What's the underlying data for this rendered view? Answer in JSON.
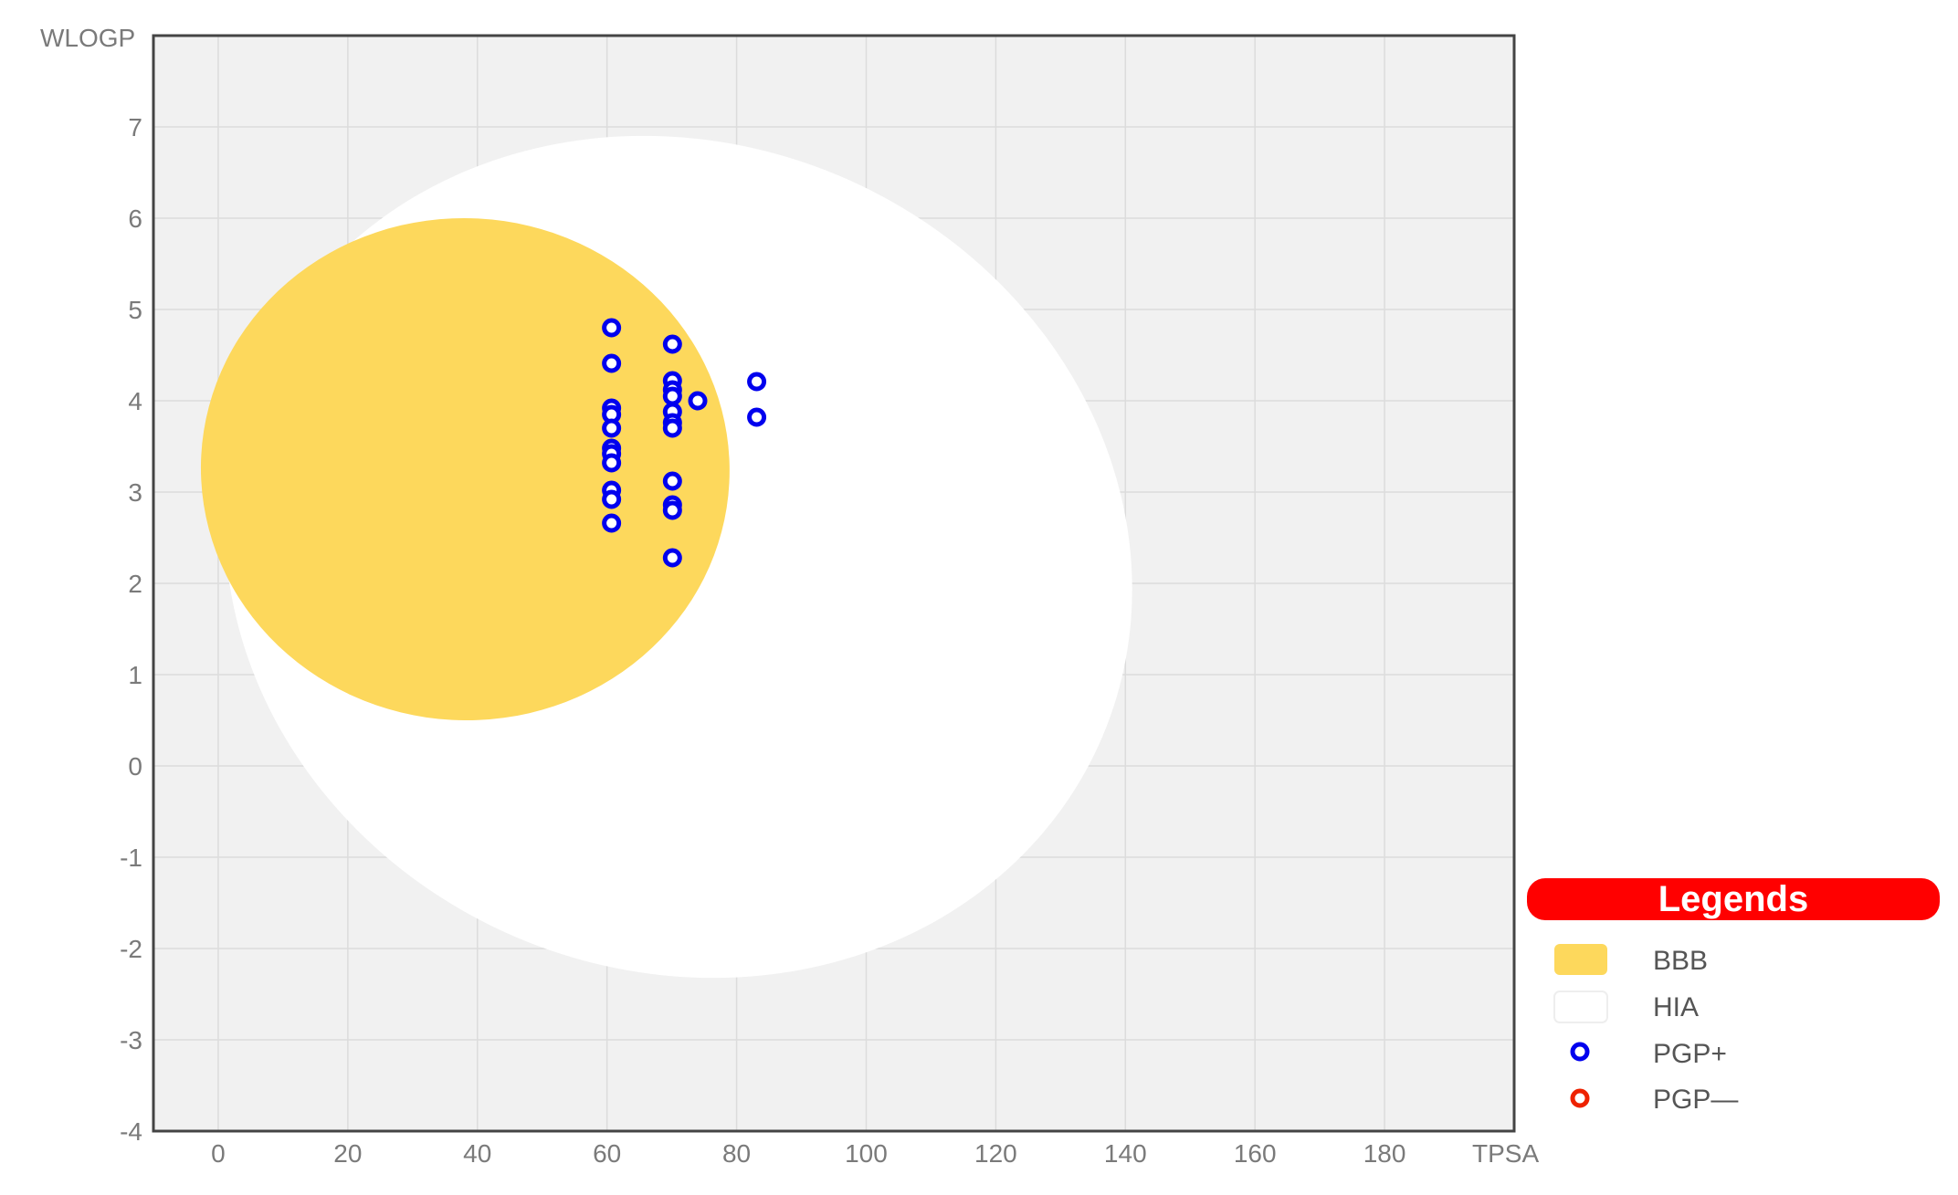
{
  "chart_data": {
    "type": "scatter",
    "xlabel": "TPSA",
    "ylabel": "WLOGP",
    "xlim": [
      -10,
      200
    ],
    "ylim": [
      -4,
      8
    ],
    "xticks": [
      0,
      20,
      40,
      60,
      80,
      100,
      120,
      140,
      160,
      180
    ],
    "yticks": [
      -4,
      -3,
      -2,
      -1,
      0,
      1,
      2,
      3,
      4,
      5,
      6,
      7
    ],
    "grid": true,
    "background_color": "#f1f1f1",
    "regions": [
      {
        "name": "HIA",
        "shape": "ellipse",
        "color": "#ffffff",
        "center": [
          71.05,
          2.29
        ],
        "radii": [
          71.05,
          4.53
        ],
        "rotation_deg": 23
      },
      {
        "name": "BBB",
        "shape": "ellipse",
        "color": "#fdd85c",
        "center": [
          38.12,
          3.25
        ],
        "radii": [
          40.8,
          2.75
        ],
        "rotation_deg": 3
      }
    ],
    "series": [
      {
        "name": "PGP+",
        "color": "#0000ee",
        "points": [
          [
            60.7,
            4.8
          ],
          [
            60.7,
            4.41
          ],
          [
            60.7,
            3.92
          ],
          [
            60.7,
            3.85
          ],
          [
            60.7,
            3.7
          ],
          [
            60.7,
            3.48
          ],
          [
            60.7,
            3.42
          ],
          [
            60.7,
            3.32
          ],
          [
            60.7,
            3.02
          ],
          [
            60.7,
            2.92
          ],
          [
            60.7,
            2.66
          ],
          [
            70.1,
            4.62
          ],
          [
            70.1,
            4.22
          ],
          [
            70.1,
            4.12
          ],
          [
            70.1,
            4.05
          ],
          [
            70.1,
            3.88
          ],
          [
            70.1,
            3.76
          ],
          [
            70.1,
            3.7
          ],
          [
            70.1,
            3.12
          ],
          [
            70.1,
            2.86
          ],
          [
            70.1,
            2.8
          ],
          [
            70.1,
            2.28
          ],
          [
            74.0,
            4.0
          ],
          [
            83.1,
            4.21
          ],
          [
            83.1,
            3.82
          ]
        ]
      },
      {
        "name": "PGP—",
        "color": "#ee2200",
        "points": []
      }
    ],
    "legend": {
      "title": "Legends",
      "placement": "bottom-right",
      "title_color": "#ff0000",
      "items": [
        {
          "label": "BBB",
          "kind": "swatch",
          "color": "#fdd85c"
        },
        {
          "label": "HIA",
          "kind": "swatch",
          "color": "#ffffff"
        },
        {
          "label": "PGP+",
          "kind": "marker",
          "color": "#0000ee"
        },
        {
          "label": "PGP—",
          "kind": "marker",
          "color": "#ee2200"
        }
      ]
    }
  }
}
